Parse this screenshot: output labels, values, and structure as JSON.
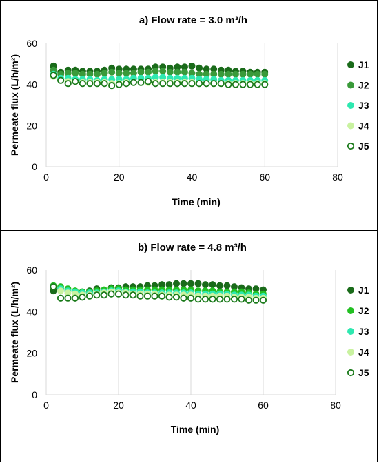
{
  "chart_data": [
    {
      "type": "scatter",
      "title": "a) Flow rate = 3.0 m³/h",
      "xlabel": "Time (min)",
      "ylabel": "Permeate flux (L/h/m²)",
      "xlim": [
        0,
        80
      ],
      "ylim": [
        0,
        60
      ],
      "x_ticks": [
        "0",
        "20",
        "40",
        "60",
        "80"
      ],
      "y_ticks": [
        "0",
        "20",
        "40",
        "60"
      ],
      "grid": "vertical",
      "legend_position": "right",
      "x": [
        2,
        4,
        6,
        8,
        10,
        12,
        14,
        16,
        18,
        20,
        22,
        24,
        26,
        28,
        30,
        32,
        34,
        36,
        38,
        40,
        42,
        44,
        46,
        48,
        50,
        52,
        54,
        56,
        58,
        60
      ],
      "series": [
        {
          "name": "J1",
          "color": "#1a6b1a",
          "fill": "#1a6b1a",
          "values": [
            49,
            46,
            47,
            47,
            46.5,
            46.5,
            46.5,
            47,
            48,
            47.5,
            47.5,
            47.5,
            47.5,
            47.5,
            48.5,
            48.5,
            48,
            48.5,
            48.5,
            49,
            48,
            47.5,
            47.5,
            47,
            47,
            46.5,
            46.5,
            46,
            46,
            46
          ]
        },
        {
          "name": "J2",
          "color": "#3a9a3a",
          "fill": "#3a9a3a",
          "values": [
            47,
            45,
            45.5,
            45.5,
            45,
            45,
            45,
            45.5,
            46,
            45.5,
            45.5,
            45.5,
            46,
            46,
            46.5,
            46.5,
            46,
            46,
            46,
            45.5,
            45,
            45,
            45,
            45,
            45,
            45,
            45,
            45,
            45,
            45
          ]
        },
        {
          "name": "J3",
          "color": "#2ee8b0",
          "fill": "#2ee8b0",
          "values": [
            45,
            43,
            43,
            42.5,
            42.5,
            42.5,
            42,
            42.5,
            42.5,
            42.5,
            42.5,
            43,
            43,
            43,
            43.5,
            43.5,
            43,
            43,
            43,
            43,
            42.5,
            42.5,
            42.5,
            42,
            42,
            42,
            42,
            42,
            42,
            42
          ]
        },
        {
          "name": "J4",
          "color": "#c9f2a0",
          "fill": "#c9f2a0",
          "values": [
            44,
            42,
            41.5,
            41.5,
            41,
            41,
            41,
            41,
            40.5,
            40.5,
            41,
            41,
            41,
            41,
            41,
            41,
            41,
            41,
            41,
            41,
            40.5,
            40.5,
            40.5,
            40.5,
            40.5,
            40.5,
            40.5,
            40.5,
            40.5,
            40.5
          ]
        },
        {
          "name": "J5",
          "color": "#1a7a1a",
          "fill": "#ffffff",
          "values": [
            44.5,
            42,
            40.5,
            41.5,
            40.5,
            40.5,
            40.5,
            40.5,
            39.5,
            40,
            40.5,
            41,
            41,
            41.5,
            40.5,
            40.5,
            40.5,
            40.5,
            40.5,
            40.5,
            40.5,
            40.5,
            40.5,
            40.5,
            40,
            40,
            40,
            40,
            40,
            40
          ]
        }
      ]
    },
    {
      "type": "scatter",
      "title": "b) Flow rate = 4.8 m³/h",
      "xlabel": "Time (min)",
      "ylabel": "Permeate flux (L/h/m²)",
      "xlim": [
        0,
        80
      ],
      "ylim": [
        0,
        60
      ],
      "x_ticks": [
        "0",
        "20",
        "40",
        "60",
        "80"
      ],
      "y_ticks": [
        "0",
        "20",
        "40",
        "60"
      ],
      "grid": "vertical",
      "legend_position": "right",
      "x": [
        2,
        4,
        6,
        8,
        10,
        12,
        14,
        16,
        18,
        20,
        22,
        24,
        26,
        28,
        30,
        32,
        34,
        36,
        38,
        40,
        42,
        44,
        46,
        48,
        50,
        52,
        54,
        56,
        58,
        60
      ],
      "series": [
        {
          "name": "J1",
          "color": "#1a6b1a",
          "fill": "#1a6b1a",
          "values": [
            50,
            51,
            50,
            49.5,
            49.5,
            50,
            51,
            49.5,
            51.5,
            51.5,
            52,
            52,
            52,
            52.5,
            52.5,
            53,
            53,
            53.5,
            53.5,
            53.5,
            53.5,
            53,
            53,
            52.5,
            52.5,
            52,
            51.5,
            51,
            51,
            50.5
          ]
        },
        {
          "name": "J2",
          "color": "#22c022",
          "fill": "#22c022",
          "values": [
            52.5,
            52,
            51,
            50,
            49.5,
            49.5,
            50,
            50.5,
            51,
            51,
            50.5,
            50.5,
            50.5,
            50.5,
            50.5,
            50.5,
            50.5,
            50.5,
            50.5,
            50.5,
            50,
            50,
            50,
            49.5,
            49.5,
            49.5,
            49.5,
            49,
            48.5,
            48.5
          ]
        },
        {
          "name": "J3",
          "color": "#2ee8b0",
          "fill": "#2ee8b0",
          "values": [
            52,
            51,
            50,
            49.5,
            49,
            49,
            49,
            49.5,
            50,
            50,
            49.5,
            49.5,
            49.5,
            49,
            49,
            49,
            49,
            49,
            49,
            49,
            48.5,
            48.5,
            48.5,
            48.5,
            48.5,
            48,
            48,
            48,
            47.5,
            47.5
          ]
        },
        {
          "name": "J4",
          "color": "#c9f2a0",
          "fill": "#c9f2a0",
          "values": [
            52,
            50,
            49,
            48.5,
            48,
            48,
            48.5,
            49,
            49.5,
            49,
            49,
            48.5,
            48.5,
            48.5,
            48.5,
            48,
            48,
            48,
            48,
            48,
            47.5,
            47.5,
            47.5,
            47.5,
            47.5,
            47,
            47,
            47,
            46.5,
            46.5
          ]
        },
        {
          "name": "J5",
          "color": "#1a7a1a",
          "fill": "#ffffff",
          "values": [
            52,
            46.5,
            46.5,
            46.5,
            47,
            47.5,
            48,
            48,
            48.5,
            48.5,
            48,
            48,
            47.5,
            47.5,
            47.5,
            47.5,
            47,
            47,
            46.5,
            46.5,
            46,
            46,
            46,
            46,
            46,
            46,
            46,
            45.5,
            45.5,
            45.5
          ]
        }
      ]
    }
  ]
}
